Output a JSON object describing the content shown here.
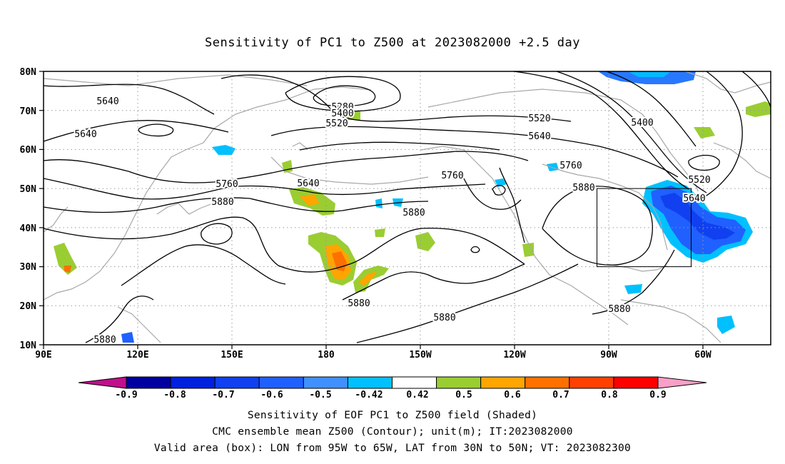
{
  "title": "Sensitivity of PC1 to Z500 at 2023082000 +2.5 day",
  "lat_labels": [
    "80N",
    "70N",
    "60N",
    "50N",
    "40N",
    "30N",
    "20N",
    "10N"
  ],
  "lon_labels": [
    "90E",
    "120E",
    "150E",
    "180",
    "150W",
    "120W",
    "90W",
    "60W"
  ],
  "contour_labels": [
    {
      "text": "5640"
    },
    {
      "text": "5640"
    },
    {
      "text": "5280"
    },
    {
      "text": "5400"
    },
    {
      "text": "5520"
    },
    {
      "text": "5520"
    },
    {
      "text": "5640"
    },
    {
      "text": "5400"
    },
    {
      "text": "5760"
    },
    {
      "text": "5880"
    },
    {
      "text": "5640"
    },
    {
      "text": "5760"
    },
    {
      "text": "5880"
    },
    {
      "text": "5760"
    },
    {
      "text": "5880"
    },
    {
      "text": "5520"
    },
    {
      "text": "5640"
    },
    {
      "text": "5880"
    },
    {
      "text": "5880"
    },
    {
      "text": "5880"
    },
    {
      "text": "5880"
    }
  ],
  "colorbar": {
    "tick_labels": [
      "-0.9",
      "-0.8",
      "-0.7",
      "-0.6",
      "-0.5",
      "-0.42",
      "0.42",
      "0.5",
      "0.6",
      "0.7",
      "0.8",
      "0.9"
    ],
    "colors": [
      "#0000a0",
      "#0020e0",
      "#1040f0",
      "#2060ff",
      "#4090ff",
      "#00c0ff",
      "#ffffff",
      "#9acd32",
      "#ffa500",
      "#ff7000",
      "#ff4000",
      "#ff0000"
    ],
    "low_end_color": "#c0108c",
    "high_end_color": "#f8a0c8"
  },
  "valid_box": {
    "lon_min": -95,
    "lon_max": -65,
    "lat_min": 30,
    "lat_max": 50
  },
  "captions": {
    "line1": "Sensitivity of EOF PC1 to Z500 field (Shaded)",
    "line2": "CMC ensemble mean Z500 (Contour); unit(m); IT:2023082000",
    "line3": "Valid area (box): LON from 95W to 65W, LAT from 30N to 50N; VT: 2023082300"
  }
}
